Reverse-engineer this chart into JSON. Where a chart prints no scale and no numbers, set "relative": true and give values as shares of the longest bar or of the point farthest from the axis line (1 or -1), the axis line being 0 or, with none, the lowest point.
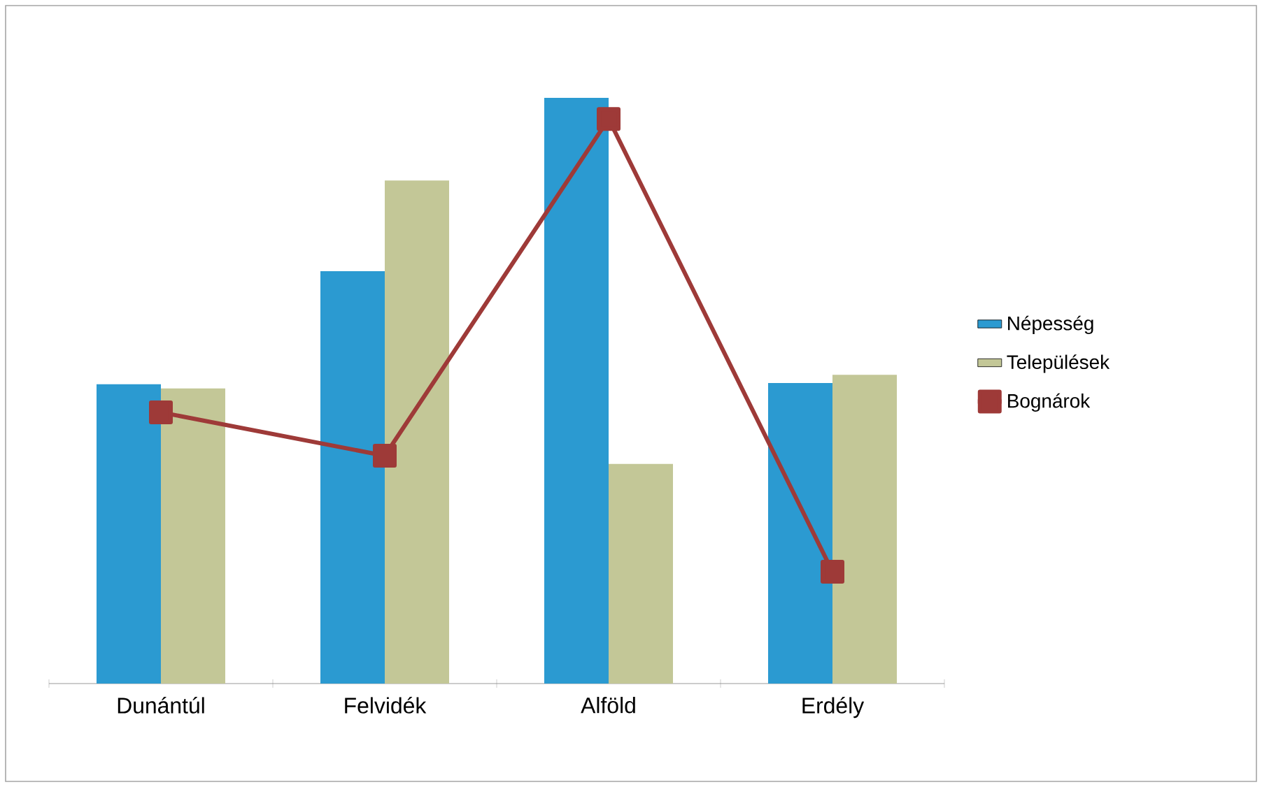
{
  "chart_data": {
    "type": "bar",
    "relative": true,
    "legend": "right",
    "categories": [
      "Dunántúl",
      "Felvidék",
      "Alföld",
      "Erdély"
    ],
    "series": [
      {
        "name": "Népesség",
        "color": "#2b9ad1",
        "values": [
          0.511,
          0.704,
          1,
          0.513
        ]
      },
      {
        "name": "Települések",
        "color": "#c3c797",
        "values": [
          0.504,
          0.859,
          0.375,
          0.527
        ]
      },
      {
        "name": "Bognárok",
        "type": "line",
        "marker": "square",
        "color": "#9e3a38",
        "values": [
          0.463,
          0.389,
          0.964,
          0.191
        ]
      }
    ]
  }
}
